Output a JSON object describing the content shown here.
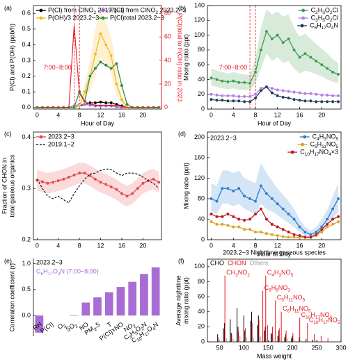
{
  "chart_data": [
    {
      "type": "line",
      "panel_label": "(a)",
      "xlabel": "Hour of Day",
      "ylabel": "P(Cl) and P(OH) (ppb/h)",
      "y2label": "P(Cl)total to P(OH) ratio in 2023",
      "x": [
        0,
        1,
        2,
        3,
        4,
        5,
        6,
        7,
        8,
        9,
        10,
        11,
        12,
        13,
        14,
        15,
        16,
        17,
        18,
        19,
        20,
        21,
        22,
        23
      ],
      "xlim": [
        -0.7,
        23.5
      ],
      "xticks": [
        0,
        4,
        8,
        12,
        16,
        20
      ],
      "ylim": [
        -0.01,
        0.65
      ],
      "yticks": [
        {
          "value": 0,
          "label": "0.0"
        },
        0.1,
        0.2,
        0.3,
        0.4,
        0.5,
        0.6
      ],
      "y2lim": [
        -1.3,
        86.7
      ],
      "y2ticks": [
        0,
        20,
        40,
        60,
        80
      ],
      "legend": "upper left",
      "legend_ncol": 2,
      "highlight_x": [
        7,
        8
      ],
      "highlight_label": "7:00~8:00",
      "series": [
        {
          "name": "P(Cl) from ClNO2 2019.1~2",
          "color": "#000000",
          "marker": true,
          "values": [
            0,
            0,
            0,
            0,
            0,
            0,
            0,
            0,
            0.01,
            0.02,
            0.03,
            0.03,
            0.035,
            0.03,
            0.03,
            0.02,
            0.01,
            0,
            0,
            0,
            0,
            0,
            0,
            0
          ]
        },
        {
          "name": "P(Cl) from ClNO2 2023.2~3",
          "color": "#a05cd6",
          "marker": true,
          "values": [
            0,
            0,
            0,
            0,
            0,
            0,
            0,
            0.01,
            0.02,
            0.02,
            0.015,
            0.01,
            0.01,
            0.01,
            0.01,
            0.005,
            0,
            0,
            0,
            0,
            0,
            0,
            0,
            0
          ]
        },
        {
          "name": "P(OH)/3 2023.2~3",
          "color": "#f5b820",
          "marker": true,
          "values": [
            0,
            0,
            0,
            0,
            0,
            0,
            0,
            0,
            0.01,
            0.1,
            0.2,
            0.34,
            0.47,
            0.4,
            0.33,
            0.15,
            0.05,
            0,
            0,
            0,
            0,
            0,
            0,
            0
          ],
          "band_lower": [
            0,
            0,
            0,
            0,
            0,
            0,
            0,
            0,
            0,
            0.05,
            0.1,
            0.2,
            0.32,
            0.27,
            0.22,
            0.08,
            0.02,
            0,
            0,
            0,
            0,
            0,
            0,
            0
          ],
          "band_upper": [
            0,
            0,
            0,
            0,
            0,
            0,
            0,
            0,
            0.02,
            0.15,
            0.3,
            0.5,
            0.62,
            0.55,
            0.45,
            0.25,
            0.08,
            0,
            0,
            0,
            0,
            0,
            0,
            0
          ]
        },
        {
          "name": "P(Cl)total 2023.2~3",
          "color": "#2e8b3e",
          "marker": true,
          "values": [
            0,
            0,
            0,
            0,
            0,
            0,
            0,
            0,
            0.1,
            0.04,
            0.2,
            0.25,
            0.29,
            0.27,
            0.25,
            0.28,
            0.14,
            0.02,
            0,
            0,
            0,
            0,
            0,
            0
          ]
        },
        {
          "color": "#e8141c",
          "axis": "y2",
          "marker": false,
          "values": [
            0,
            0,
            0,
            0,
            0,
            0,
            0,
            70,
            12,
            5,
            3,
            2,
            2,
            2,
            2,
            2,
            1,
            0,
            0,
            0,
            0,
            0,
            0,
            0
          ]
        }
      ]
    },
    {
      "type": "line",
      "panel_label": "(b)",
      "xlabel": "Hour of Day",
      "ylabel": "Mixing ratio (ppt)",
      "x": [
        0,
        1,
        2,
        3,
        4,
        5,
        6,
        7,
        8,
        9,
        10,
        11,
        12,
        13,
        14,
        15,
        16,
        17,
        18,
        19,
        20,
        21,
        22,
        23
      ],
      "xlim": [
        -0.7,
        23.5
      ],
      "xticks": [
        0,
        4,
        8,
        12,
        16,
        20
      ],
      "ylim": [
        0,
        140
      ],
      "yticks": [
        0,
        20,
        40,
        60,
        80,
        100,
        120,
        140
      ],
      "legend": "upper right",
      "highlight_x": [
        7,
        8
      ],
      "highlight_label": "7:00~8:00",
      "series": [
        {
          "name": "C2H3O2Cl",
          "color": "#3a9a4d",
          "marker": true,
          "values": [
            42,
            40,
            38,
            37,
            38,
            36,
            36,
            35,
            50,
            80,
            105,
            95,
            100,
            90,
            95,
            80,
            70,
            75,
            70,
            65,
            60,
            55,
            50,
            47
          ],
          "band_lower": [
            32,
            30,
            28,
            27,
            28,
            26,
            26,
            25,
            35,
            55,
            75,
            65,
            70,
            62,
            65,
            55,
            48,
            52,
            50,
            47,
            44,
            40,
            37,
            35
          ],
          "band_upper": [
            55,
            52,
            50,
            48,
            50,
            48,
            47,
            46,
            68,
            110,
            135,
            128,
            132,
            125,
            128,
            110,
            98,
            102,
            95,
            88,
            82,
            75,
            68,
            62
          ]
        },
        {
          "name": "C3H5O2Cl",
          "color": "#b07ee0",
          "marker": true,
          "values": [
            20,
            19,
            18,
            18,
            18,
            17,
            17,
            17,
            20,
            28,
            30,
            28,
            26,
            25,
            24,
            23,
            22,
            21,
            21,
            20,
            19,
            19,
            18,
            18
          ]
        },
        {
          "name": "C6H17O4N",
          "color": "#1f3c5a",
          "marker": true,
          "values": [
            13,
            12,
            12,
            11,
            11,
            11,
            10,
            10,
            15,
            25,
            30,
            22,
            18,
            16,
            15,
            13,
            12,
            11,
            11,
            10,
            10,
            10,
            10,
            10
          ]
        }
      ]
    },
    {
      "type": "line",
      "panel_label": "(c)",
      "ylabel": [
        "Fraction of CHON in",
        "total gaseous organics"
      ],
      "x": [
        0,
        1,
        2,
        3,
        4,
        5,
        6,
        7,
        8,
        9,
        10,
        11,
        12,
        13,
        14,
        15,
        16,
        17,
        18,
        19,
        20,
        21,
        22,
        23
      ],
      "xlim": [
        -0.7,
        23.5
      ],
      "xticks": [
        0,
        4,
        8,
        12,
        16,
        20
      ],
      "ylim": [
        0.2,
        0.41
      ],
      "yticks": [
        0.2,
        0.3,
        0.4
      ],
      "legend": "upper left",
      "series": [
        {
          "name": "2023.2~3",
          "color": "#e8444a",
          "marker": true,
          "values": [
            0.316,
            0.313,
            0.31,
            0.312,
            0.315,
            0.318,
            0.322,
            0.326,
            0.33,
            0.33,
            0.325,
            0.318,
            0.312,
            0.308,
            0.303,
            0.298,
            0.29,
            0.285,
            0.29,
            0.3,
            0.31,
            0.315,
            0.318,
            0.312
          ],
          "band_lower": [
            0.296,
            0.293,
            0.29,
            0.292,
            0.295,
            0.298,
            0.302,
            0.306,
            0.31,
            0.31,
            0.305,
            0.298,
            0.292,
            0.288,
            0.283,
            0.278,
            0.27,
            0.265,
            0.27,
            0.28,
            0.29,
            0.295,
            0.298,
            0.292
          ],
          "band_upper": [
            0.336,
            0.333,
            0.33,
            0.332,
            0.335,
            0.338,
            0.342,
            0.346,
            0.35,
            0.35,
            0.345,
            0.338,
            0.332,
            0.328,
            0.323,
            0.318,
            0.31,
            0.305,
            0.31,
            0.32,
            0.33,
            0.335,
            0.338,
            0.332
          ]
        },
        {
          "name": "2019.1~2",
          "color": "#000000",
          "marker": false,
          "dash": true,
          "values": [
            0.318,
            0.3,
            0.285,
            0.28,
            0.285,
            0.278,
            0.272,
            0.29,
            0.305,
            0.318,
            0.328,
            0.33,
            0.335,
            0.338,
            0.337,
            0.33,
            0.325,
            0.33,
            0.33,
            0.328,
            0.322,
            0.315,
            0.31,
            0.3
          ]
        }
      ]
    },
    {
      "type": "line",
      "panel_label": "(d)",
      "xlabel": "Hour of Day",
      "ylabel": "Mixing ratio (ppt)",
      "annotations": [
        "2023.2~3"
      ],
      "x": [
        0,
        1,
        2,
        3,
        4,
        5,
        6,
        7,
        8,
        9,
        10,
        11,
        12,
        13,
        14,
        15,
        16,
        17,
        18,
        19,
        20,
        21,
        22,
        23
      ],
      "xlim": [
        -0.7,
        23.5
      ],
      "xticks": [
        0,
        4,
        8,
        12,
        16,
        20
      ],
      "ylim": [
        0,
        210
      ],
      "yticks": [
        0,
        40,
        80,
        120,
        160,
        200
      ],
      "legend": "upper right",
      "series": [
        {
          "name": "C4H3NO5",
          "color": "#2a7bd4",
          "marker": true,
          "values": [
            80,
            75,
            100,
            100,
            95,
            100,
            85,
            80,
            75,
            105,
            90,
            80,
            70,
            60,
            50,
            40,
            25,
            15,
            10,
            15,
            25,
            40,
            60,
            80
          ],
          "band_lower": [
            55,
            50,
            70,
            70,
            65,
            70,
            60,
            55,
            50,
            70,
            60,
            55,
            48,
            40,
            32,
            25,
            15,
            8,
            5,
            8,
            15,
            28,
            42,
            55
          ],
          "band_upper": [
            110,
            105,
            135,
            135,
            130,
            135,
            120,
            115,
            110,
            150,
            130,
            115,
            100,
            88,
            75,
            60,
            40,
            25,
            18,
            25,
            40,
            58,
            85,
            110
          ]
        },
        {
          "name": "C5H11NO5",
          "color": "#d9a520",
          "marker": true,
          "values": [
            35,
            30,
            30,
            28,
            25,
            25,
            20,
            20,
            15,
            15,
            12,
            10,
            8,
            6,
            5,
            5,
            4,
            4,
            4,
            8,
            15,
            25,
            30,
            35
          ]
        },
        {
          "name": "C10H17NO4×3",
          "color": "#c0141c",
          "marker": true,
          "values": [
            50,
            45,
            45,
            50,
            45,
            40,
            38,
            40,
            50,
            60,
            40,
            30,
            25,
            20,
            15,
            10,
            8,
            5,
            5,
            10,
            20,
            30,
            40,
            45
          ]
        }
      ]
    },
    {
      "type": "bar",
      "panel_label": "(e)",
      "ylabel": "Correlation coefficient (r)",
      "annotations": [
        "2023.2~3",
        "C6H17O4N (7:00~8:00)"
      ],
      "color": "#a86cd4",
      "categories": [
        "RH",
        "P(Cl)",
        "O3",
        "SO2",
        "NO",
        "PM2.5",
        "T",
        "P(Cl)×NO",
        "NO2",
        "C3H5O2N",
        "C10H17O4N"
      ],
      "values": [
        -0.33,
        0,
        0,
        0.01,
        0.25,
        0.35,
        0.45,
        0.55,
        0.65,
        0.8,
        0.93
      ],
      "ylim": [
        -0.4,
        1.1
      ],
      "yticks": [
        {
          "value": 0,
          "label": "0.0"
        },
        0.5,
        {
          "value": 1,
          "label": "1.0"
        }
      ]
    },
    {
      "type": "stem",
      "panel_label": "(f)",
      "title": "2023.2~3 Nighttime gaseous species",
      "xlabel": "Mass weight",
      "ylabel": [
        "Average nighttime",
        "mixing ratio (ppt)"
      ],
      "xlim": [
        25,
        300
      ],
      "xticks": [
        50,
        100,
        150,
        200,
        250,
        300
      ],
      "ylim": [
        0,
        110
      ],
      "yticks": [
        0,
        20,
        40,
        60,
        80,
        100
      ],
      "series": [
        {
          "name": "CHO",
          "color": "#000000",
          "x": [
            46,
            58,
            60,
            72,
            74,
            86,
            88,
            100,
            102,
            114,
            116,
            128,
            130,
            142,
            144,
            156,
            158,
            170,
            172,
            184,
            186,
            198,
            200,
            214,
            228,
            242
          ],
          "values": [
            10,
            18,
            25,
            30,
            12,
            45,
            20,
            35,
            15,
            28,
            40,
            22,
            35,
            15,
            20,
            12,
            10,
            8,
            15,
            6,
            10,
            5,
            8,
            6,
            4,
            3
          ]
        },
        {
          "name": "CHON",
          "color": "#e8141c",
          "x": [
            47,
            61,
            75,
            89,
            103,
            117,
            131,
            139,
            145,
            149,
            159,
            165,
            173,
            177,
            187,
            201,
            215,
            231,
            245,
            259,
            273
          ],
          "values": [
            6,
            88,
            10,
            14,
            18,
            25,
            30,
            68,
            88,
            22,
            20,
            55,
            18,
            40,
            15,
            12,
            32,
            25,
            10,
            8,
            5
          ],
          "point_labels": [
            null,
            "CH3NO2",
            null,
            null,
            null,
            null,
            null,
            "C6H5NO3",
            "C4H3NO5",
            null,
            null,
            "C5H11NO5",
            null,
            "C6H11NO5",
            null,
            null,
            "C10H17NO4",
            "C10H17NO5",
            null,
            null,
            null
          ]
        },
        {
          "name": "Others",
          "color": "#9a9a9a",
          "x": [
            50,
            64,
            78,
            92,
            106,
            120,
            134,
            148,
            162,
            176,
            190,
            204,
            218,
            232,
            246,
            260,
            274,
            288
          ],
          "values": [
            3,
            5,
            4,
            8,
            6,
            5,
            7,
            4,
            6,
            5,
            4,
            3,
            3,
            2,
            2,
            2,
            1,
            1
          ]
        }
      ]
    }
  ]
}
